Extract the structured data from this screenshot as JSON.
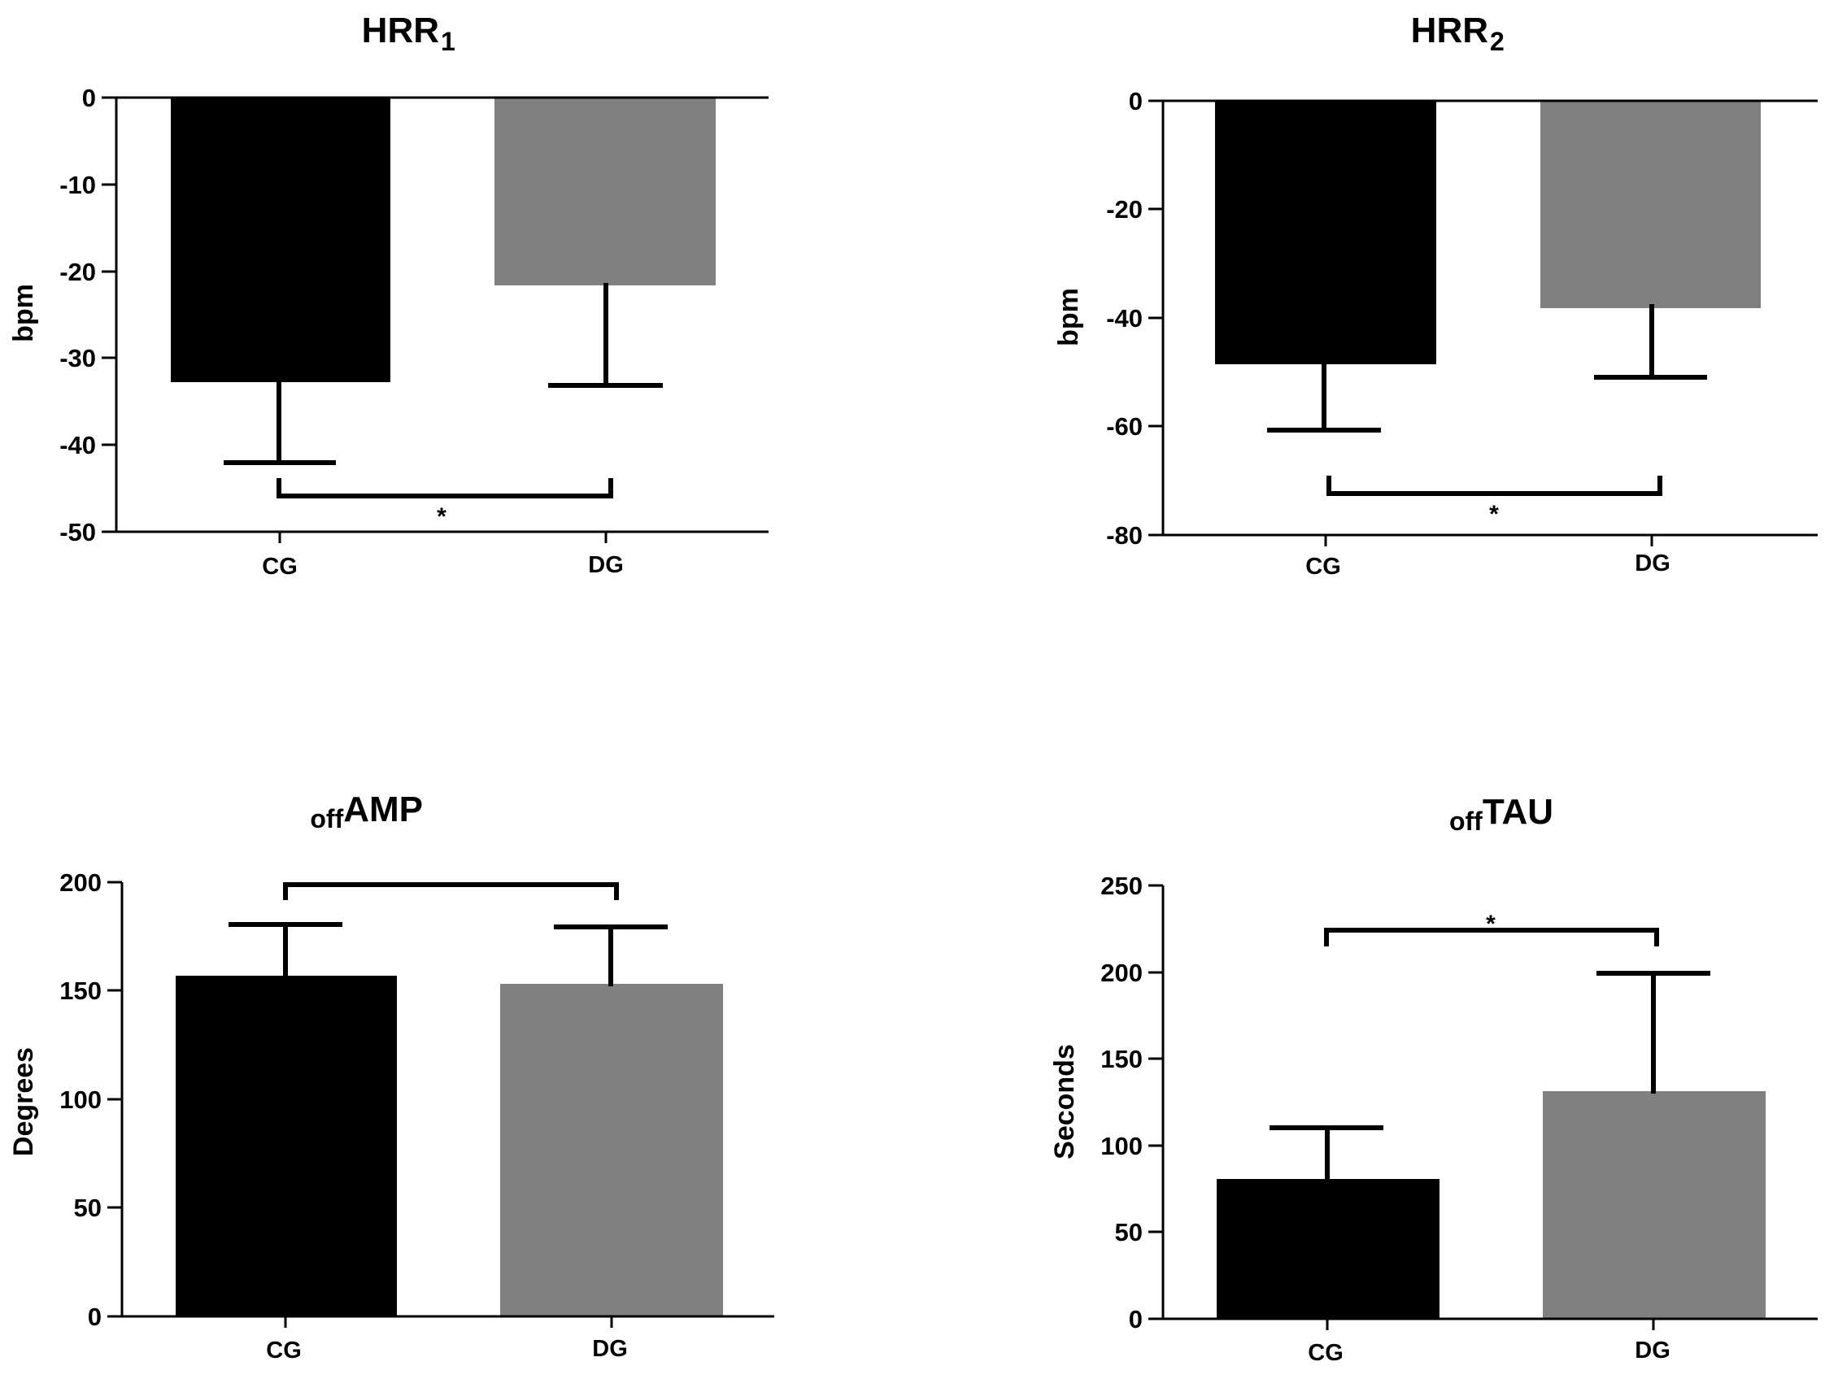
{
  "chart_data": [
    {
      "type": "bar",
      "title_main": "HRR",
      "title_sub": "1",
      "ylabel": "bpm",
      "categories": [
        "CG",
        "DG"
      ],
      "values": [
        -33,
        -22
      ],
      "errors": [
        9,
        11.5
      ],
      "ylim": [
        -50,
        0
      ],
      "ticks": [
        "0",
        "-10",
        "-20",
        "-30",
        "-40",
        "-50"
      ],
      "colors": [
        "#000000",
        "#808080"
      ],
      "significance": "*"
    },
    {
      "type": "bar",
      "title_main": "HRR",
      "title_sub": "2",
      "ylabel": "bpm",
      "categories": [
        "CG",
        "DG"
      ],
      "values": [
        -49,
        -38
      ],
      "errors": [
        12,
        13
      ],
      "ylim": [
        -80,
        0
      ],
      "ticks": [
        "0",
        "-20",
        "-40",
        "-60",
        "-80"
      ],
      "colors": [
        "#000000",
        "#808080"
      ],
      "significance": "*"
    },
    {
      "type": "bar",
      "title_main": "AMP",
      "title_sub": "off",
      "ylabel": "Degrees",
      "categories": [
        "CG",
        "DG"
      ],
      "values": [
        157,
        153
      ],
      "errors": [
        24,
        27
      ],
      "ylim": [
        0,
        200
      ],
      "ticks": [
        "200",
        "150",
        "100",
        "50",
        "0"
      ],
      "colors": [
        "#000000",
        "#808080"
      ],
      "significance": ""
    },
    {
      "type": "bar",
      "title_main": "TAU",
      "title_sub": "off",
      "ylabel": "Seconds",
      "categories": [
        "CG",
        "DG"
      ],
      "values": [
        81,
        132
      ],
      "errors": [
        30,
        68
      ],
      "ylim": [
        0,
        250
      ],
      "ticks": [
        "250",
        "200",
        "150",
        "100",
        "50",
        "0"
      ],
      "colors": [
        "#000000",
        "#808080"
      ],
      "significance": "*"
    }
  ]
}
